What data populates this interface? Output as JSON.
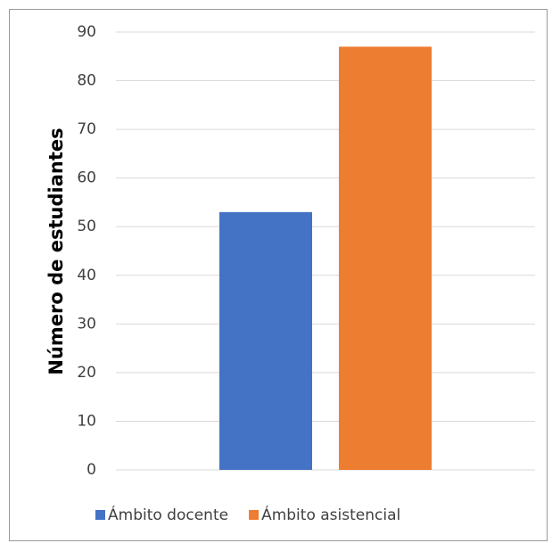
{
  "chart_data": {
    "type": "bar",
    "y_label": "Número de estudiantes",
    "categories": [
      null
    ],
    "series": [
      {
        "name": "Ámbito docente",
        "color": "#4472c4",
        "values": [
          53
        ]
      },
      {
        "name": "Ámbito asistencial",
        "color": "#ed7d31",
        "values": [
          87
        ]
      }
    ],
    "ylim": [
      0,
      90
    ],
    "yticks": [
      0,
      10,
      20,
      30,
      40,
      50,
      60,
      70,
      80,
      90
    ],
    "grid": true,
    "legend": "bottom"
  }
}
